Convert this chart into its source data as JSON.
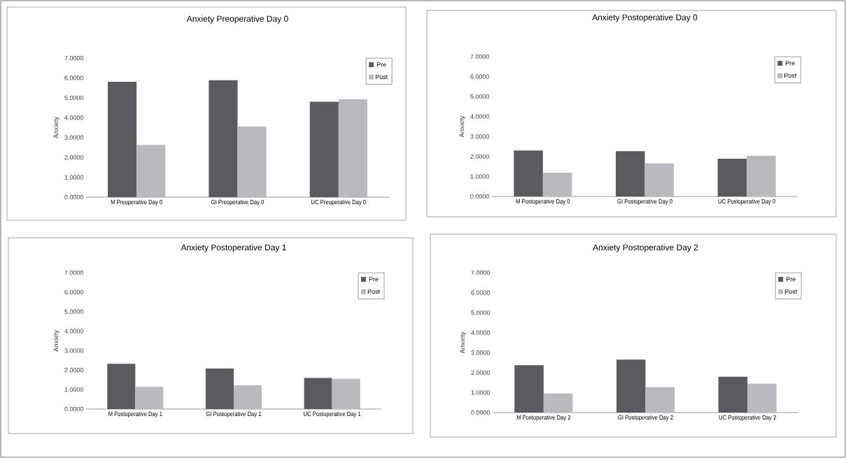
{
  "chart_data": [
    {
      "type": "bar",
      "title": "Anxiety Preoperative Day 0",
      "ylabel": "Anxiety",
      "categories": [
        "M Preoperative Day 0",
        "GI Preoperative Day 0",
        "UC Preoperative Day 0"
      ],
      "series": [
        {
          "name": "Pre",
          "color": "#5b5b5f",
          "values": [
            5.8,
            5.89,
            4.8
          ]
        },
        {
          "name": "Post",
          "color": "#b9babd",
          "values": [
            2.63,
            3.56,
            4.93
          ]
        }
      ],
      "ylim": [
        0,
        7
      ],
      "yticks": [
        {
          "value": 0,
          "label": "0.0000"
        },
        {
          "value": 1,
          "label": "1.0000"
        },
        {
          "value": 2,
          "label": "2.0000"
        },
        {
          "value": 3,
          "label": "3.0000"
        },
        {
          "value": 4,
          "label": "4.0000"
        },
        {
          "value": 5,
          "label": "5.0000"
        },
        {
          "value": 6,
          "label": "6.0000"
        },
        {
          "value": 7,
          "label": "7.0000"
        }
      ],
      "legend": "top right"
    },
    {
      "type": "bar",
      "title": "Anxiety Postoperative Day 0",
      "ylabel": "Anxiety",
      "categories": [
        "M Postoperative Day 0",
        "GI Postoperative Day 0",
        "UC Postoperative Day 0"
      ],
      "series": [
        {
          "name": "Pre",
          "color": "#5b5b5f",
          "values": [
            2.3,
            2.27,
            1.89
          ]
        },
        {
          "name": "Post",
          "color": "#b9babd",
          "values": [
            1.19,
            1.65,
            2.04
          ]
        }
      ],
      "ylim": [
        0,
        7
      ],
      "yticks": [
        {
          "value": 0,
          "label": "0.0000"
        },
        {
          "value": 1,
          "label": "1.0000"
        },
        {
          "value": 2,
          "label": "2.0000"
        },
        {
          "value": 3,
          "label": "3.0000"
        },
        {
          "value": 4,
          "label": "4.0000"
        },
        {
          "value": 5,
          "label": "5.0000"
        },
        {
          "value": 6,
          "label": "6.0000"
        },
        {
          "value": 7,
          "label": "7.0000"
        }
      ],
      "legend": "top right"
    },
    {
      "type": "bar",
      "title": "Anxiety Postoperative Day 1",
      "ylabel": "Anxiety",
      "categories": [
        "M Postoperative Day 1",
        "GI Postoperative Day 1",
        "UC Postoperative Day 1"
      ],
      "series": [
        {
          "name": "Pre",
          "color": "#5b5b5f",
          "values": [
            2.32,
            2.08,
            1.6
          ]
        },
        {
          "name": "Post",
          "color": "#b9babd",
          "values": [
            1.14,
            1.22,
            1.55
          ]
        }
      ],
      "ylim": [
        0,
        7
      ],
      "yticks": [
        {
          "value": 0,
          "label": "0.0000"
        },
        {
          "value": 1,
          "label": "1.0000"
        },
        {
          "value": 2,
          "label": "2.0000"
        },
        {
          "value": 3,
          "label": "3.0000"
        },
        {
          "value": 4,
          "label": "4.0000"
        },
        {
          "value": 5,
          "label": "5.0000"
        },
        {
          "value": 6,
          "label": "6.0000"
        },
        {
          "value": 7,
          "label": "7.0000"
        }
      ],
      "legend": "top right"
    },
    {
      "type": "bar",
      "title": "Anxiety Postoperative Day 2",
      "ylabel": "Anxiety",
      "categories": [
        "M Postoperative Day 2",
        "GI Postoperative Day 2",
        "UC Postoperative Day 2"
      ],
      "series": [
        {
          "name": "Pre",
          "color": "#5b5b5f",
          "values": [
            2.37,
            2.65,
            1.79
          ]
        },
        {
          "name": "Post",
          "color": "#b9babd",
          "values": [
            0.95,
            1.27,
            1.44
          ]
        }
      ],
      "ylim": [
        0,
        7
      ],
      "yticks": [
        {
          "value": 0,
          "label": "0.0000"
        },
        {
          "value": 1,
          "label": "1.0000"
        },
        {
          "value": 2,
          "label": "2.0000"
        },
        {
          "value": 3,
          "label": "3.0000"
        },
        {
          "value": 4,
          "label": "4.0000"
        },
        {
          "value": 5,
          "label": "5.0000"
        },
        {
          "value": 6,
          "label": "6.0000"
        },
        {
          "value": 7,
          "label": "7.0000"
        }
      ],
      "legend": "top right"
    }
  ]
}
